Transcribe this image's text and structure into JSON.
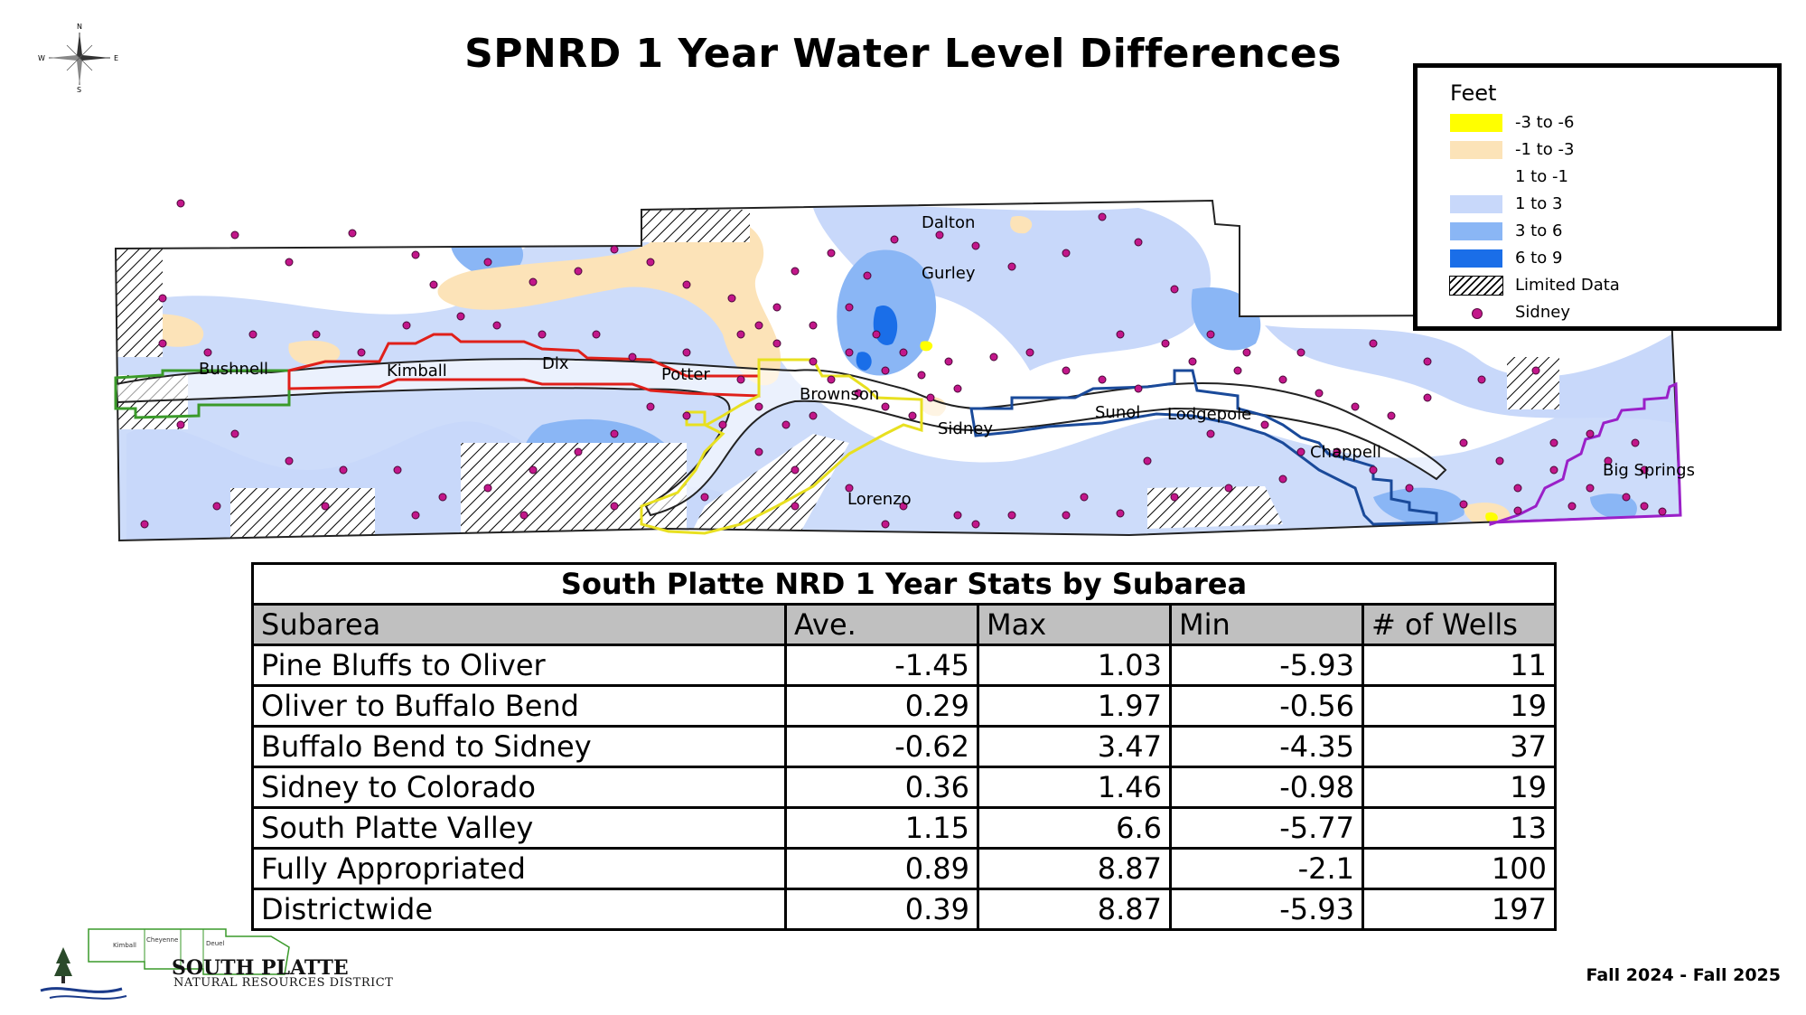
{
  "title": "SPNRD 1 Year Water Level Differences",
  "compass": {
    "n": "N",
    "s": "S",
    "e": "E",
    "w": "W",
    "icon": "compass-rose-icon"
  },
  "legend": {
    "title": "Feet",
    "items": [
      {
        "label": "-3 to -6",
        "color": "#ffff00",
        "type": "fill"
      },
      {
        "label": "-1 to -3",
        "color": "#fce3b8",
        "type": "fill"
      },
      {
        "label": "1 to -1",
        "color": "#ffffff",
        "type": "fill"
      },
      {
        "label": "1 to 3",
        "color": "#c8d8fa",
        "type": "fill"
      },
      {
        "label": "3 to 6",
        "color": "#8ab6f5",
        "type": "fill"
      },
      {
        "label": "6 to 9",
        "color": "#1a6ee8",
        "type": "fill"
      },
      {
        "label": "Limited Data",
        "color": "#000000",
        "type": "hatch"
      },
      {
        "label": "Sidney",
        "color": "#c2178a",
        "type": "dot"
      }
    ]
  },
  "map": {
    "towns": [
      "Dalton",
      "Gurley",
      "Bushnell",
      "Kimball",
      "Dix",
      "Potter",
      "Brownson",
      "Sidney",
      "Sunol",
      "Lodgepole",
      "Chappell",
      "Big Springs",
      "Lorenzo"
    ],
    "colors": {
      "outline": "#222222",
      "green": "#3a9a2a",
      "red": "#e0201a",
      "yellow": "#e8e020",
      "blue": "#1a4a9a",
      "purple": "#9a20c8",
      "well": "#c2178a"
    }
  },
  "table": {
    "caption": "South Platte NRD 1 Year Stats by Subarea",
    "headers": [
      "Subarea",
      "Ave.",
      "Max",
      "Min",
      "# of Wells"
    ],
    "rows": [
      [
        "Pine Bluffs to Oliver",
        "-1.45",
        "1.03",
        "-5.93",
        "11"
      ],
      [
        "Oliver to Buffalo Bend",
        "0.29",
        "1.97",
        "-0.56",
        "19"
      ],
      [
        "Buffalo Bend to Sidney",
        "-0.62",
        "3.47",
        "-4.35",
        "37"
      ],
      [
        "Sidney to Colorado",
        "0.36",
        "1.46",
        "-0.98",
        "19"
      ],
      [
        "South Platte Valley",
        "1.15",
        "6.6",
        "-5.77",
        "13"
      ],
      [
        "Fully Appropriated",
        "0.89",
        "8.87",
        "-2.1",
        "100"
      ],
      [
        "Districtwide",
        "0.39",
        "8.87",
        "-5.93",
        "197"
      ]
    ]
  },
  "logo": {
    "name": "SOUTH PLATTE",
    "subtitle": "NATURAL RESOURCES DISTRICT",
    "counties": [
      "Kimball",
      "Cheyenne",
      "Deuel"
    ]
  },
  "period": "Fall 2024 - Fall 2025"
}
